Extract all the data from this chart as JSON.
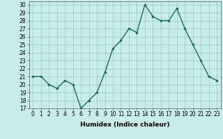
{
  "x": [
    0,
    1,
    2,
    3,
    4,
    5,
    6,
    7,
    8,
    9,
    10,
    11,
    12,
    13,
    14,
    15,
    16,
    17,
    18,
    19,
    20,
    21,
    22,
    23
  ],
  "y": [
    21,
    21,
    20,
    19.5,
    20.5,
    20,
    17,
    18,
    19,
    21.5,
    24.5,
    25.5,
    27,
    26.5,
    30,
    28.5,
    28,
    28,
    29.5,
    27,
    25,
    23,
    21,
    20.5
  ],
  "line_color": "#1a6b5a",
  "marker_color": "#1a6b5a",
  "bg_color": "#c8ece8",
  "grid_color": "#8abfba",
  "xlabel": "Humidex (Indice chaleur)",
  "xlim": [
    -0.5,
    23.5
  ],
  "ylim": [
    17,
    30.4
  ],
  "yticks": [
    17,
    18,
    19,
    20,
    21,
    22,
    23,
    24,
    25,
    26,
    27,
    28,
    29,
    30
  ],
  "xticks": [
    0,
    1,
    2,
    3,
    4,
    5,
    6,
    7,
    8,
    9,
    10,
    11,
    12,
    13,
    14,
    15,
    16,
    17,
    18,
    19,
    20,
    21,
    22,
    23
  ],
  "xlabel_fontsize": 6.5,
  "tick_fontsize": 5.5,
  "line_width": 1.0,
  "marker_size": 2.0
}
